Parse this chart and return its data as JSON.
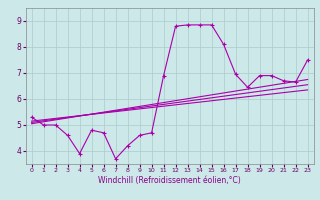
{
  "title": "",
  "xlabel": "Windchill (Refroidissement éolien,°C)",
  "ylabel": "",
  "background_color": "#cce8e8",
  "grid_color": "#aacccc",
  "line_color": "#aa00aa",
  "xlim": [
    -0.5,
    23.5
  ],
  "ylim": [
    3.5,
    9.5
  ],
  "yticks": [
    4,
    5,
    6,
    7,
    8,
    9
  ],
  "xticks": [
    0,
    1,
    2,
    3,
    4,
    5,
    6,
    7,
    8,
    9,
    10,
    11,
    12,
    13,
    14,
    15,
    16,
    17,
    18,
    19,
    20,
    21,
    22,
    23
  ],
  "series1_x": [
    0,
    1,
    2,
    3,
    4,
    5,
    6,
    7,
    8,
    9,
    10,
    11,
    12,
    13,
    14,
    15,
    16,
    17,
    18,
    19,
    20,
    21,
    22,
    23
  ],
  "series1_y": [
    5.3,
    5.0,
    5.0,
    4.6,
    3.9,
    4.8,
    4.7,
    3.7,
    4.2,
    4.6,
    4.7,
    6.9,
    8.8,
    8.85,
    8.85,
    8.85,
    8.1,
    6.95,
    6.45,
    6.9,
    6.9,
    6.7,
    6.65,
    7.5
  ],
  "series2_x": [
    0,
    23
  ],
  "series2_y": [
    5.05,
    6.75
  ],
  "series3_x": [
    0,
    23
  ],
  "series3_y": [
    5.1,
    6.55
  ],
  "series4_x": [
    0,
    23
  ],
  "series4_y": [
    5.15,
    6.35
  ]
}
